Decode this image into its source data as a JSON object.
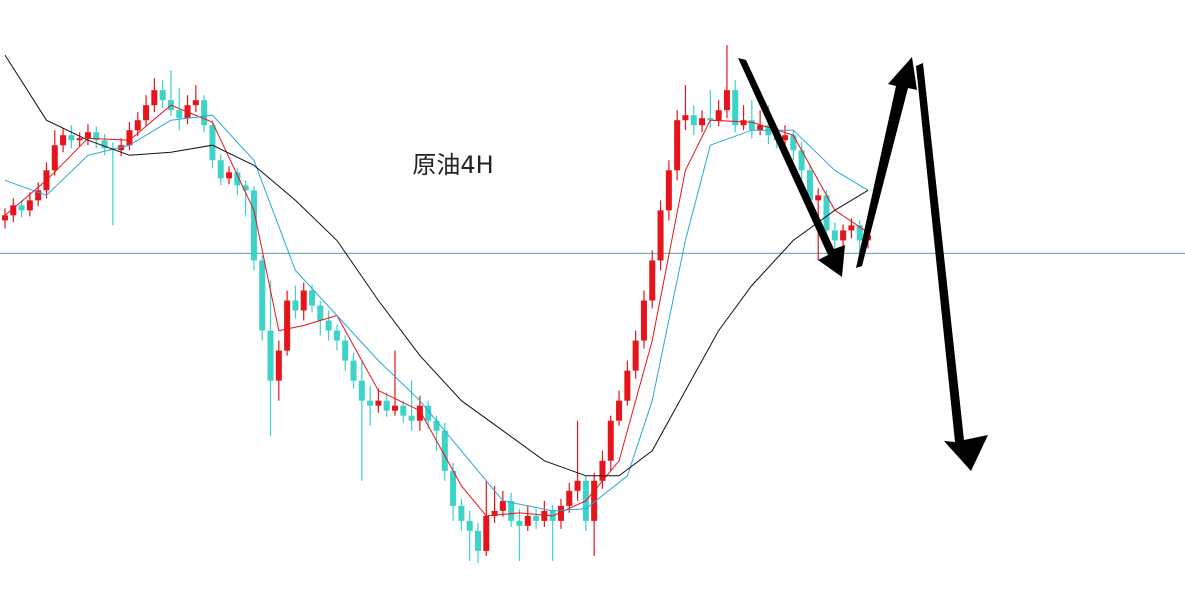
{
  "chart_data": {
    "type": "candlestick",
    "title": "原油4H",
    "ylim": [
      0,
      600
    ],
    "xlim": [
      -0.6,
      142.2
    ],
    "up_color": "#e8141c",
    "down_color": "#3cd3c8",
    "open": [
      380,
      385,
      395,
      390,
      400,
      410,
      430,
      455,
      465,
      460,
      462,
      468,
      460,
      452,
      450,
      455,
      470,
      480,
      495,
      510,
      500,
      490,
      482,
      495,
      500,
      475,
      440,
      422,
      428,
      415,
      410,
      340,
      270,
      220,
      250,
      300,
      290,
      310,
      295,
      280,
      270,
      260,
      240,
      220,
      200,
      195,
      200,
      190,
      195,
      185,
      180,
      195,
      180,
      170,
      130,
      95,
      80,
      70,
      50,
      85,
      90,
      100,
      80,
      75,
      85,
      80,
      90,
      80,
      95,
      110,
      120,
      80,
      120,
      140,
      180,
      200,
      230,
      260,
      300,
      340,
      390,
      430,
      480,
      485,
      475,
      482,
      480,
      490,
      510,
      475,
      480,
      470,
      475,
      465,
      460,
      465,
      450,
      430,
      400,
      405,
      370,
      360,
      370,
      375,
      360
    ],
    "high": [
      392,
      402,
      400,
      408,
      418,
      438,
      470,
      472,
      475,
      468,
      476,
      474,
      466,
      458,
      462,
      478,
      488,
      505,
      522,
      520,
      530,
      512,
      505,
      515,
      505,
      480,
      446,
      434,
      432,
      420,
      414,
      345,
      320,
      260,
      310,
      315,
      318,
      316,
      300,
      290,
      276,
      265,
      248,
      240,
      215,
      212,
      208,
      250,
      200,
      220,
      205,
      200,
      185,
      178,
      138,
      102,
      90,
      78,
      120,
      115,
      110,
      108,
      92,
      95,
      92,
      100,
      96,
      102,
      118,
      180,
      125,
      128,
      150,
      185,
      210,
      240,
      270,
      310,
      350,
      400,
      440,
      490,
      515,
      495,
      490,
      510,
      500,
      555,
      520,
      495,
      500,
      490,
      495,
      470,
      475,
      470,
      458,
      435,
      412,
      410,
      378,
      376,
      382,
      380,
      372
    ],
    "low": [
      372,
      378,
      383,
      384,
      394,
      402,
      425,
      448,
      452,
      454,
      455,
      452,
      445,
      375,
      444,
      450,
      464,
      474,
      488,
      492,
      484,
      470,
      476,
      488,
      468,
      432,
      415,
      416,
      405,
      385,
      330,
      260,
      165,
      200,
      245,
      282,
      280,
      288,
      265,
      260,
      250,
      230,
      212,
      120,
      175,
      188,
      184,
      185,
      178,
      170,
      170,
      172,
      150,
      120,
      80,
      70,
      40,
      38,
      45,
      78,
      84,
      74,
      40,
      70,
      72,
      74,
      40,
      72,
      88,
      100,
      70,
      45,
      112,
      130,
      175,
      195,
      222,
      252,
      292,
      330,
      380,
      420,
      470,
      465,
      468,
      472,
      474,
      482,
      468,
      470,
      462,
      465,
      456,
      452,
      448,
      440,
      420,
      390,
      340,
      360,
      352,
      348,
      362,
      340,
      352
    ],
    "close": [
      385,
      395,
      390,
      400,
      410,
      430,
      455,
      465,
      460,
      462,
      468,
      460,
      452,
      450,
      455,
      470,
      480,
      495,
      510,
      500,
      490,
      482,
      495,
      500,
      475,
      440,
      422,
      428,
      415,
      410,
      340,
      270,
      220,
      250,
      300,
      290,
      310,
      295,
      280,
      270,
      260,
      240,
      220,
      200,
      195,
      200,
      190,
      195,
      185,
      180,
      195,
      180,
      170,
      130,
      95,
      80,
      70,
      50,
      85,
      90,
      100,
      80,
      75,
      85,
      80,
      90,
      80,
      95,
      110,
      120,
      80,
      120,
      140,
      180,
      200,
      230,
      260,
      300,
      340,
      390,
      430,
      480,
      485,
      475,
      482,
      480,
      490,
      510,
      475,
      480,
      470,
      475,
      465,
      460,
      465,
      450,
      430,
      400,
      405,
      370,
      360,
      370,
      375,
      360,
      365
    ],
    "lines": [
      {
        "color": "#e8141c",
        "x": [
          0,
          5,
          10,
          15,
          20,
          25,
          30,
          33,
          36,
          40,
          45,
          50,
          55,
          58,
          62,
          66,
          70,
          74,
          78,
          82,
          85,
          90,
          95,
          100,
          104
        ],
        "values": [
          385,
          420,
          462,
          460,
          495,
          478,
          390,
          270,
          275,
          285,
          210,
          190,
          115,
          85,
          88,
          85,
          100,
          140,
          260,
          430,
          480,
          478,
          465,
          390,
          368
        ]
      },
      {
        "color": "#27a8dc",
        "x": [
          0,
          5,
          10,
          15,
          20,
          25,
          30,
          35,
          40,
          45,
          50,
          55,
          60,
          66,
          70,
          75,
          78,
          82,
          85,
          90,
          95,
          100,
          104
        ],
        "values": [
          420,
          405,
          445,
          455,
          480,
          485,
          440,
          330,
          285,
          240,
          200,
          150,
          100,
          90,
          92,
          125,
          200,
          360,
          455,
          470,
          470,
          430,
          410
        ]
      },
      {
        "color": "#111111",
        "x": [
          0,
          5,
          10,
          15,
          20,
          25,
          30,
          35,
          40,
          45,
          50,
          55,
          60,
          65,
          70,
          74,
          78,
          82,
          86,
          90,
          95,
          100,
          104
        ],
        "values": [
          545,
          480,
          460,
          445,
          448,
          455,
          435,
          400,
          360,
          300,
          245,
          200,
          170,
          140,
          125,
          125,
          150,
          210,
          270,
          315,
          360,
          390,
          410
        ]
      }
    ],
    "reference_line": 347,
    "reference_color": "#5b9ea8"
  }
}
